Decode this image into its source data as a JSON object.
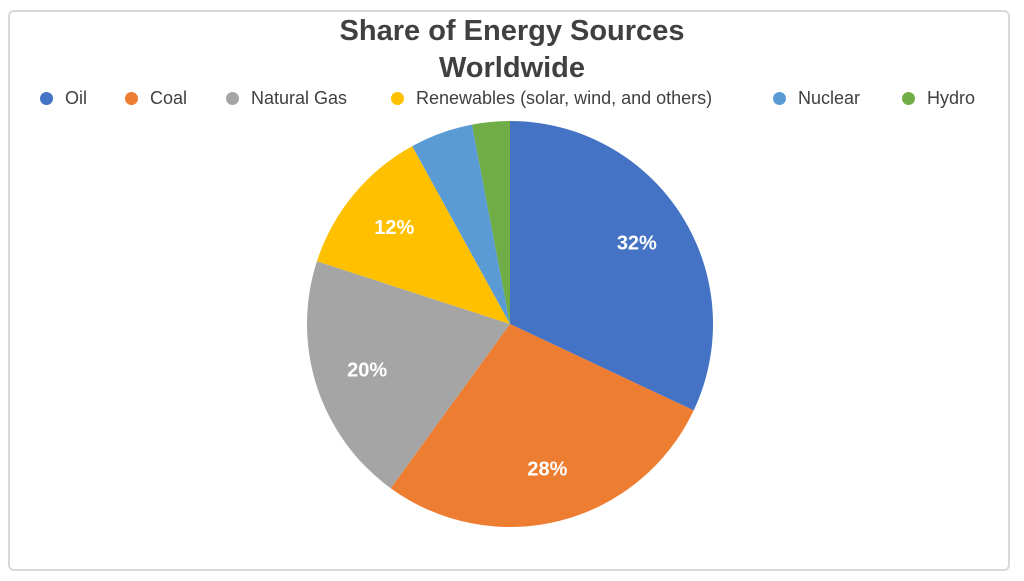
{
  "title": {
    "line1": "Share of Energy Sources",
    "line2": "Worldwide"
  },
  "chart_data": {
    "type": "pie",
    "title": "Share of Energy Sources Worldwide",
    "categories": [
      "Oil",
      "Coal",
      "Natural Gas",
      "Renewables (solar, wind, and others)",
      "Nuclear",
      "Hydro"
    ],
    "values": [
      32,
      28,
      20,
      12,
      5,
      3
    ],
    "unit": "%",
    "colors": [
      "#4472C4",
      "#ED7D31",
      "#A5A5A5",
      "#FFC000",
      "#5B9BD5",
      "#70AD47"
    ],
    "data_labels": [
      "32%",
      "28%",
      "20%",
      "12%",
      "",
      ""
    ],
    "data_label_color": "#FFFFFF",
    "start_angle": 0,
    "direction": "clockwise",
    "legend_position": "top",
    "title_color": "#404040",
    "frame_border_color": "#D9D9D9"
  }
}
